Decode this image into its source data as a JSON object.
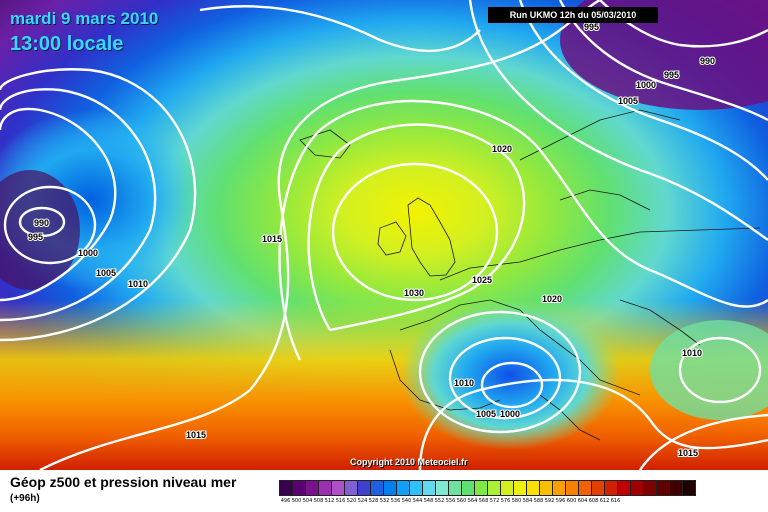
{
  "title": {
    "date": "mardi 9 mars 2010",
    "time": "13:00 locale"
  },
  "run_info": "Run UKMO 12h du 05/03/2010",
  "copyright": "Copyright 2010 Meteociel.fr",
  "caption": {
    "main": "Géop z500 et pression niveau mer",
    "forecast": "(+96h)"
  },
  "isobar_labels": [
    {
      "id": "990-atlantic",
      "text": "990"
    },
    {
      "id": "995-atlantic",
      "text": "995"
    },
    {
      "id": "1000-atlantic",
      "text": "1000"
    },
    {
      "id": "1005-atlantic",
      "text": "1005"
    },
    {
      "id": "1010-atlantic",
      "text": "1010"
    },
    {
      "id": "1015-mid",
      "text": "1015"
    },
    {
      "id": "1030-high",
      "text": "1030"
    },
    {
      "id": "1025-high",
      "text": "1025"
    },
    {
      "id": "1020-north",
      "text": "1020"
    },
    {
      "id": "1020-east",
      "text": "1020"
    },
    {
      "id": "1010-med",
      "text": "1010"
    },
    {
      "id": "1005-med",
      "text": "1005"
    },
    {
      "id": "1000-med",
      "text": "1000"
    },
    {
      "id": "1010-east",
      "text": "1010"
    },
    {
      "id": "1015-south",
      "text": "1015"
    },
    {
      "id": "1015-southeast",
      "text": "1015"
    },
    {
      "id": "995-top",
      "text": "995"
    },
    {
      "id": "990-top",
      "text": "990"
    },
    {
      "id": "995-ne",
      "text": "995"
    },
    {
      "id": "1000-ne",
      "text": "1000"
    },
    {
      "id": "1005-ne",
      "text": "1005"
    }
  ],
  "colors": {
    "scale": [
      "#3a0050",
      "#5a0070",
      "#7a1090",
      "#9a30b0",
      "#b050c8",
      "#8060d0",
      "#4040d0",
      "#2060e0",
      "#0080f0",
      "#10a0f8",
      "#30c0f8",
      "#60d8f0",
      "#80e8d0",
      "#70e0a0",
      "#60e070",
      "#80e840",
      "#a8f030",
      "#d0f020",
      "#f0f010",
      "#f8e000",
      "#f8c000",
      "#f8a000",
      "#f88000",
      "#f06000",
      "#e04000",
      "#d02000",
      "#c00000",
      "#a00000",
      "#800000",
      "#600000",
      "#400000",
      "#200000"
    ]
  },
  "scale_labels": [
    "496",
    "500",
    "504",
    "508",
    "512",
    "516",
    "520",
    "524",
    "528",
    "532",
    "536",
    "540",
    "544",
    "548",
    "552",
    "556",
    "560",
    "564",
    "568",
    "572",
    "576",
    "580",
    "584",
    "588",
    "592",
    "596",
    "600",
    "604",
    "608",
    "612",
    "616"
  ]
}
